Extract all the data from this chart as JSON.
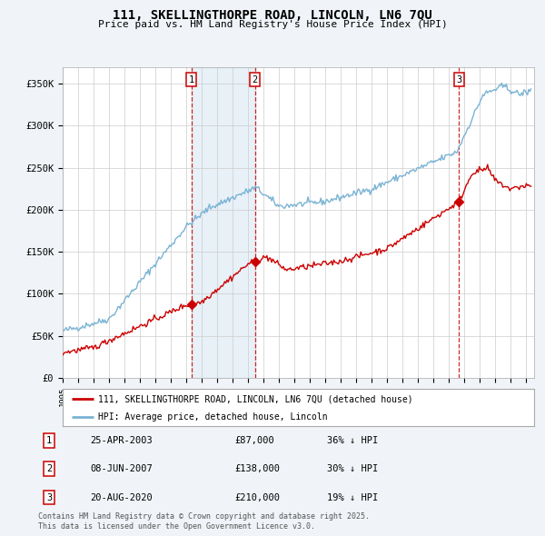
{
  "title_line1": "111, SKELLINGTHORPE ROAD, LINCOLN, LN6 7QU",
  "title_line2": "Price paid vs. HM Land Registry's House Price Index (HPI)",
  "ylabel_ticks": [
    "£0",
    "£50K",
    "£100K",
    "£150K",
    "£200K",
    "£250K",
    "£300K",
    "£350K"
  ],
  "ytick_values": [
    0,
    50000,
    100000,
    150000,
    200000,
    250000,
    300000,
    350000
  ],
  "ylim": [
    0,
    370000
  ],
  "xlim_start": 1995.0,
  "xlim_end": 2025.5,
  "background_color": "#f0f4f8",
  "plot_bg_color": "#ffffff",
  "grid_color": "#cccccc",
  "hpi_color": "#7ab3d4",
  "hpi_fill_color": "#ddeef8",
  "price_color": "#cc0000",
  "legend_label_price": "111, SKELLINGTHORPE ROAD, LINCOLN, LN6 7QU (detached house)",
  "legend_label_hpi": "HPI: Average price, detached house, Lincoln",
  "sales": [
    {
      "num": 1,
      "date_label": "25-APR-2003",
      "price": 87000,
      "pct": "36%",
      "x": 2003.32
    },
    {
      "num": 2,
      "date_label": "08-JUN-2007",
      "price": 138000,
      "pct": "30%",
      "x": 2007.44
    },
    {
      "num": 3,
      "date_label": "20-AUG-2020",
      "price": 210000,
      "pct": "19%",
      "x": 2020.64
    }
  ],
  "footer_line1": "Contains HM Land Registry data © Crown copyright and database right 2025.",
  "footer_line2": "This data is licensed under the Open Government Licence v3.0."
}
